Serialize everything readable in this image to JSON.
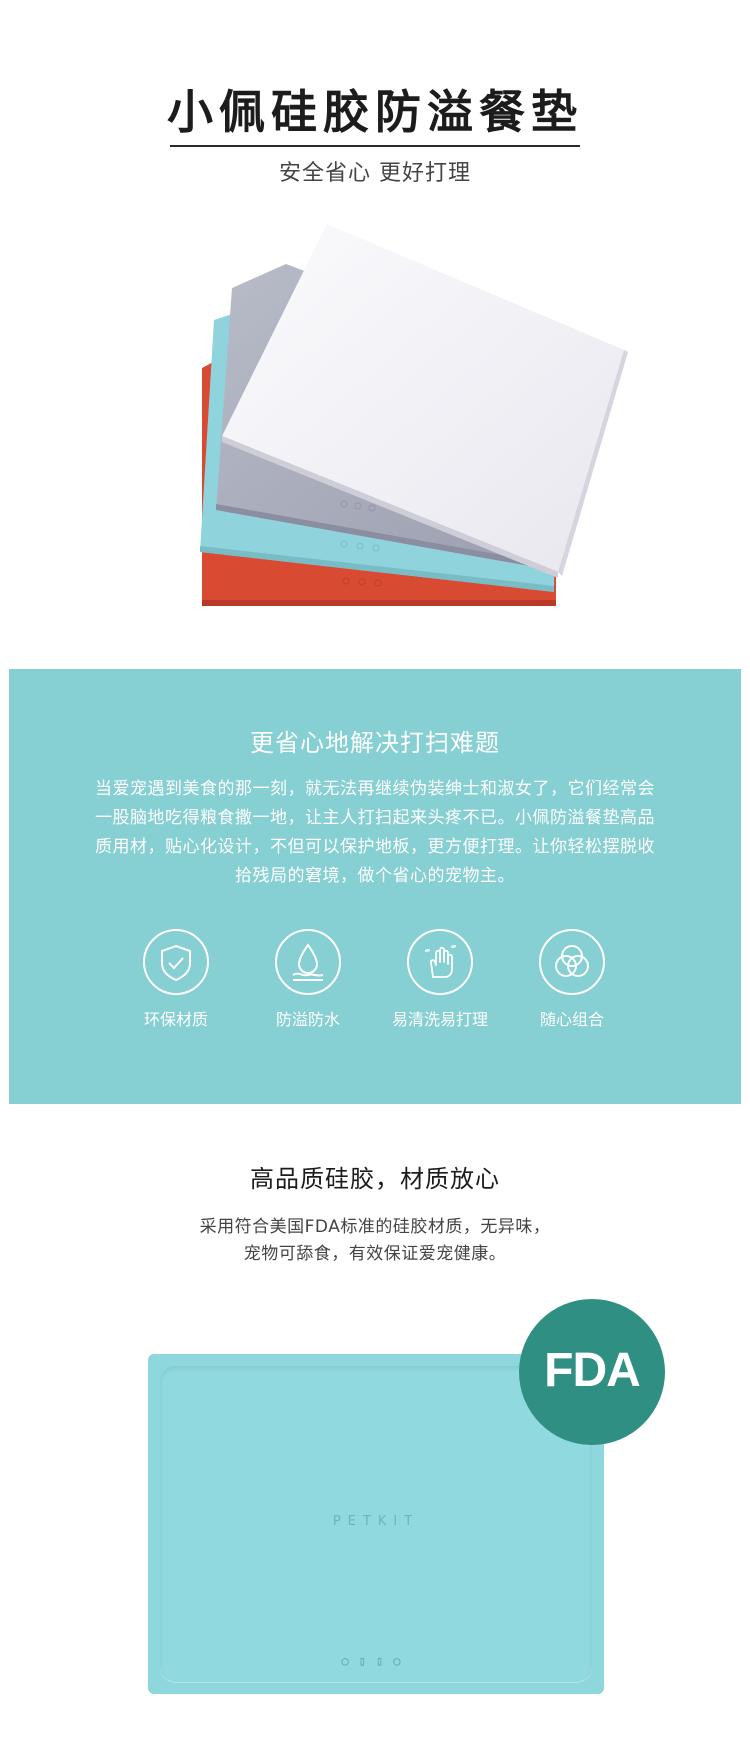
{
  "header": {
    "title": "小佩硅胶防溢餐垫",
    "subtitle": "安全省心 更好打理"
  },
  "hero": {
    "mats": [
      "white",
      "gray",
      "light-blue",
      "red"
    ]
  },
  "feature_band": {
    "heading": "更省心地解决打扫难题",
    "paragraph": "当爱宠遇到美食的那一刻，就无法再继续伪装绅士和淑女了，它们经常会一股脑地吃得粮食撒一地，让主人打扫起来头疼不已。小佩防溢餐垫高品质用材，贴心化设计，不但可以保护地板，更方便打理。让你轻松摆脱收拾残局的窘境，做个省心的宠物主。",
    "features": [
      {
        "label": "环保材质",
        "icon": "shield-check-icon"
      },
      {
        "label": "防溢防水",
        "icon": "water-drop-icon"
      },
      {
        "label": "易清洗易打理",
        "icon": "hand-sparkle-icon"
      },
      {
        "label": "随心组合",
        "icon": "overlapping-circles-icon"
      }
    ]
  },
  "quality": {
    "heading": "高品质硅胶，材质放心",
    "paragraph": "采用符合美国FDA标准的硅胶材质，无异味，宠物可舔食，有效保证爱宠健康。",
    "mat_brand": "PETKIT",
    "mat_glyphs": "○▯▯○",
    "badge_text": "FDA"
  },
  "colors": {
    "band": "#86cfd2",
    "mat_white": "#f4f3f7",
    "mat_gray": "#9fa3b3",
    "mat_blue": "#8fd3dc",
    "mat_red": "#d84a32",
    "fda_badge": "#2f8f82",
    "bottom_mat": "#8ed7dc"
  }
}
